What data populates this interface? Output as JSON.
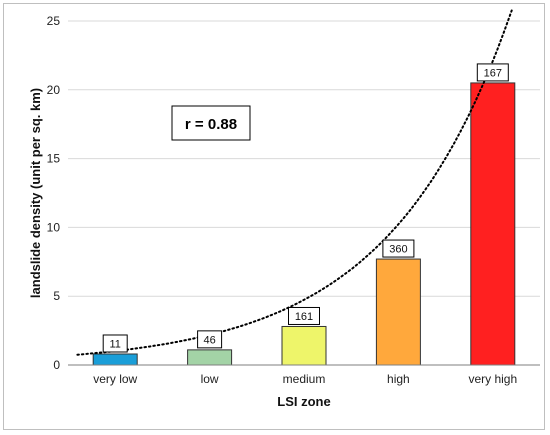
{
  "chart_data": {
    "type": "bar",
    "categories": [
      "very low",
      "low",
      "medium",
      "high",
      "very high"
    ],
    "values": [
      0.8,
      1.1,
      2.8,
      7.7,
      20.5
    ],
    "data_labels": [
      "11",
      "46",
      "161",
      "360",
      "167"
    ],
    "bar_colors": [
      "#1a9ed8",
      "#a3d3a6",
      "#eef56a",
      "#ffa83c",
      "#ff2020"
    ],
    "xlabel": "LSI zone",
    "ylabel": "landslide density (unit per sq. km)",
    "ylim": [
      0,
      25
    ],
    "yticks": [
      0,
      5,
      10,
      15,
      20,
      25
    ],
    "grid": true,
    "trendline": {
      "type": "exponential",
      "style": "dotted",
      "x_start": 0.6,
      "x_end": 5.2,
      "a": 0.47,
      "b": 0.77
    },
    "annotation": "r = 0.88"
  }
}
